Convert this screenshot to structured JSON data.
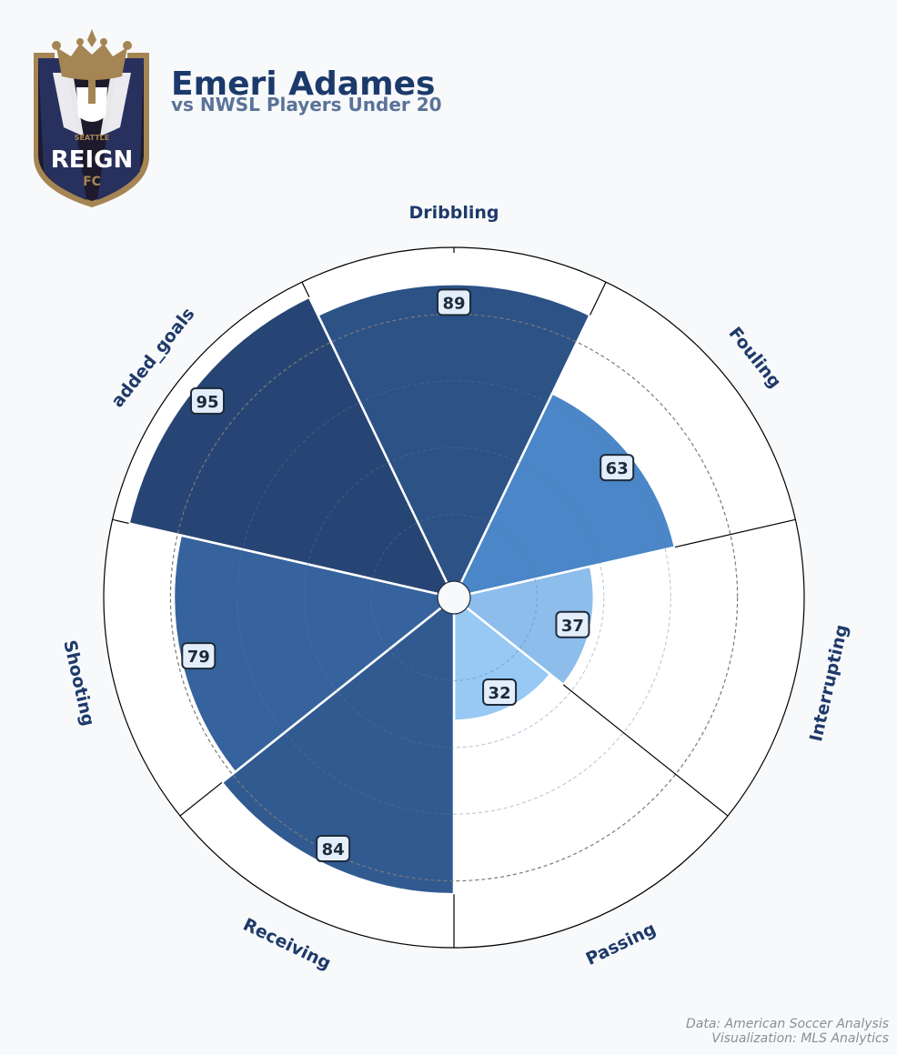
{
  "player_name": "Emeri Adames",
  "comparison": "vs NWSL Players Under 20",
  "logo": {
    "top_text": "SEATTLE",
    "main_text": "REIGN",
    "bottom_text": "FC"
  },
  "credits": {
    "data_source": "Data: American Soccer Analysis",
    "visualization": "Visualization: MLS Analytics"
  },
  "colors": {
    "title": "#1b3a6b",
    "subtitle": "#5a7397",
    "label": "#1e3a6a",
    "value_box_fill": "#e3eefa",
    "value_box_stroke": "#1d2a3a"
  },
  "chart_data": {
    "type": "polar-bar",
    "title": "Emeri Adames",
    "subtitle": "vs NWSL Players Under 20",
    "categories": [
      "Dribbling",
      "Fouling",
      "Interrupting",
      "Passing",
      "Receiving",
      "Shooting",
      "added_goals"
    ],
    "values": [
      89,
      63,
      37,
      32,
      84,
      79,
      95
    ],
    "colors": [
      "#2c5286",
      "#4a86c8",
      "#8dbdeb",
      "#97c9f4",
      "#315a91",
      "#36639d",
      "#274574"
    ],
    "rlim": [
      0,
      100
    ],
    "grid_rings": [
      20,
      40,
      60,
      80
    ],
    "reference_ring": 80,
    "grid": true
  }
}
